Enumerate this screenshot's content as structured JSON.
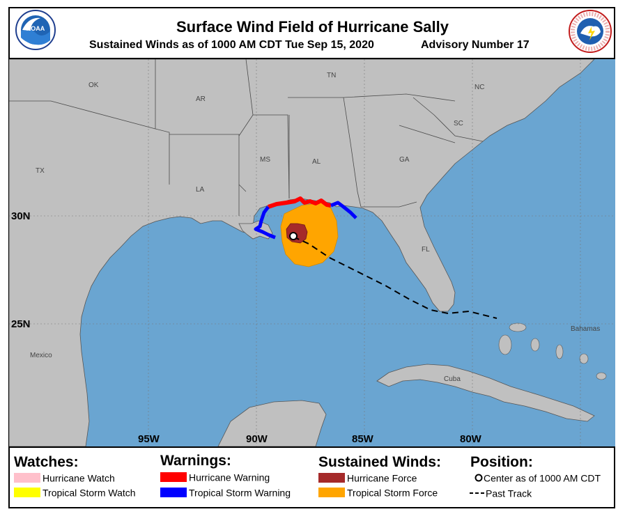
{
  "header": {
    "title": "Surface Wind Field of Hurricane Sally",
    "subtitle": "Sustained Winds as of 1000 AM CDT Tue Sep 15, 2020",
    "advisory": "Advisory Number 17",
    "left_logo_text": "NOAA",
    "right_logo_text": "NATIONAL WEATHER SERVICE"
  },
  "map": {
    "state_labels": [
      "OK",
      "AR",
      "TN",
      "NC",
      "SC",
      "TX",
      "MS",
      "AL",
      "GA",
      "LA",
      "FL"
    ],
    "country_labels": [
      "Mexico",
      "Cuba",
      "Bahamas"
    ],
    "lat_labels": [
      "30N",
      "25N"
    ],
    "lon_labels": [
      "95W",
      "90W",
      "85W",
      "80W"
    ],
    "colors": {
      "land": "#c0c0c0",
      "water": "#6aa5d1",
      "hurricane_force": "#a52a2a",
      "tropical_storm_force": "#ffa500",
      "hurricane_warning": "#ff0000",
      "tropical_storm_warning": "#0000ff"
    }
  },
  "legend": {
    "watches_title": "Watches:",
    "warnings_title": "Warnings:",
    "winds_title": "Sustained Winds:",
    "position_title": "Position:",
    "items": {
      "hurricane_watch": {
        "label": "Hurricane Watch",
        "color": "#ffc0cb"
      },
      "ts_watch": {
        "label": "Tropical Storm Watch",
        "color": "#ffff00"
      },
      "hurricane_warning": {
        "label": "Hurricane Warning",
        "color": "#ff0000"
      },
      "ts_warning": {
        "label": "Tropical Storm Warning",
        "color": "#0000ff"
      },
      "hurricane_force": {
        "label": "Hurricane Force",
        "color": "#a52a2a"
      },
      "ts_force": {
        "label": "Tropical Storm Force",
        "color": "#ffa500"
      },
      "center": {
        "label": "Center as of 1000 AM CDT"
      },
      "past_track": {
        "label": "Past Track"
      }
    }
  }
}
